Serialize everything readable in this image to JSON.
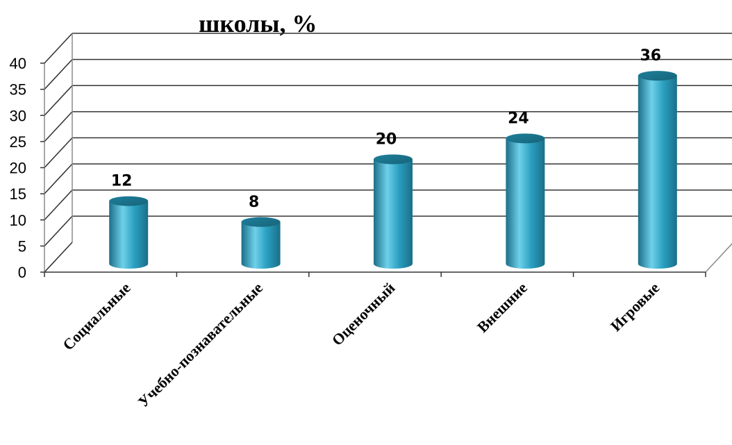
{
  "chart_data": {
    "type": "bar",
    "title_lines": [
      "",
      "школы, %"
    ],
    "categories": [
      "Социальные",
      "Учебно-познавательные",
      "Оценочный",
      "Внешние",
      "Игровые"
    ],
    "values": [
      12,
      8,
      20,
      24,
      36
    ],
    "data_labels": [
      "12",
      "8",
      "20",
      "24",
      "36"
    ],
    "yticks": [
      "0",
      "5",
      "10",
      "15",
      "20",
      "25",
      "30",
      "35",
      "40"
    ],
    "ylim": [
      0,
      40
    ],
    "xlabel": "",
    "ylabel": "",
    "grid": true,
    "legend": "none",
    "bar_color": "#2a9fc0",
    "bar_highlight": "#6fd0ea",
    "bar_shadow": "#1b6f88"
  }
}
